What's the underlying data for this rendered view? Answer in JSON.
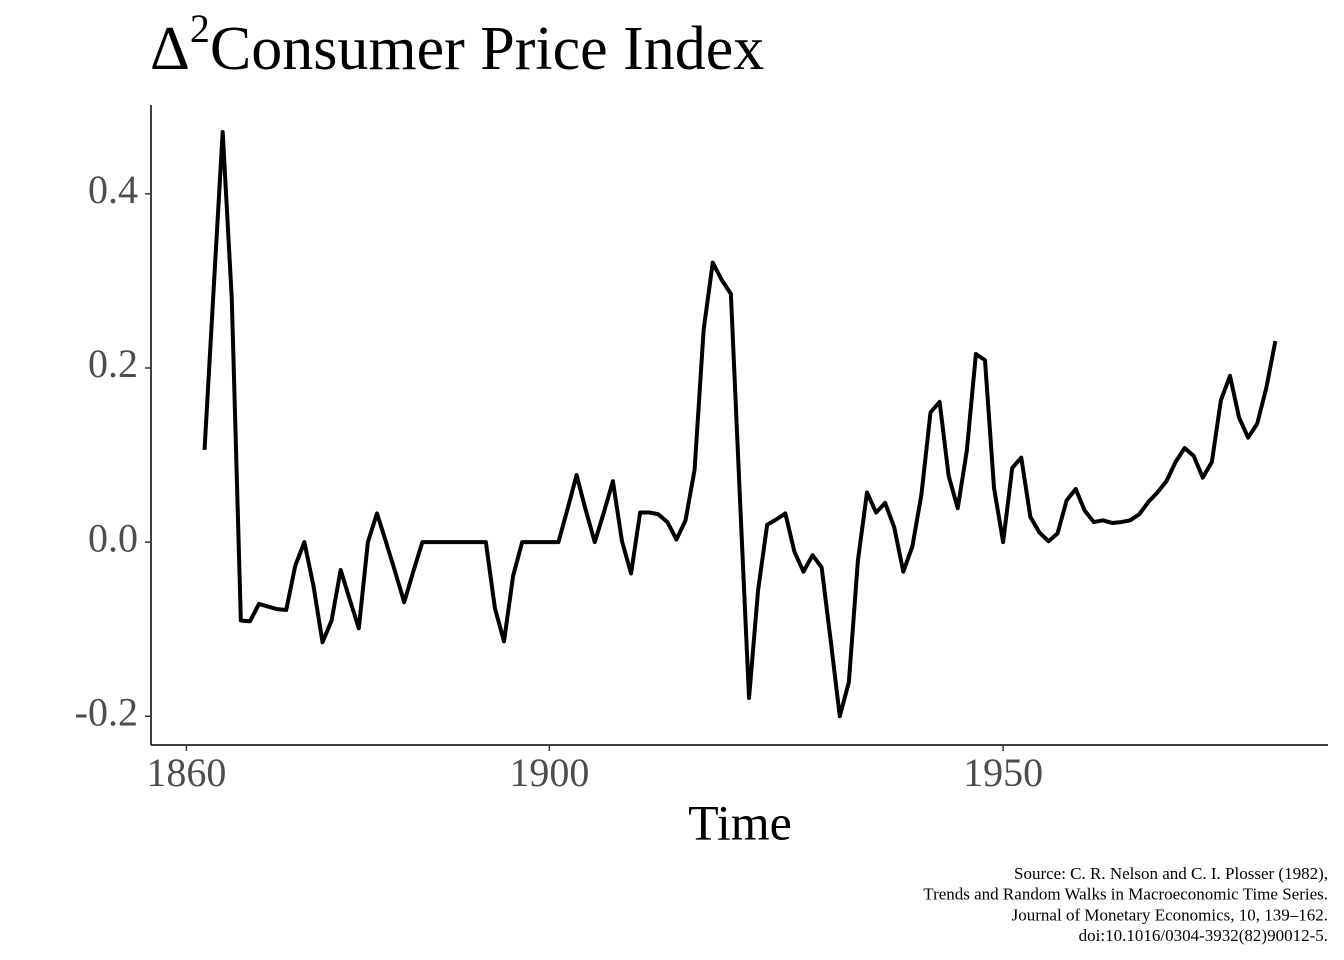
{
  "chart_data": {
    "type": "line",
    "title_prefix": "Δ",
    "title_superscript": "2",
    "title": "Consumer Price Index",
    "x_label": "Time",
    "caption": [
      "Source: C. R. Nelson and C. I. Plosser (1982),",
      "Trends and Random Walks in Macroeconomic Time Series.",
      "Journal of Monetary Economics, 10, 139–162.",
      "doi:10.1016/0304-3932(82)90012-5."
    ],
    "color": "#000000",
    "x": [
      1862,
      1863,
      1864,
      1865,
      1866,
      1867,
      1868,
      1869,
      1870,
      1871,
      1872,
      1873,
      1874,
      1875,
      1876,
      1877,
      1878,
      1879,
      1880,
      1881,
      1882,
      1883,
      1884,
      1885,
      1886,
      1887,
      1888,
      1889,
      1890,
      1891,
      1892,
      1893,
      1894,
      1895,
      1896,
      1897,
      1898,
      1899,
      1900,
      1901,
      1902,
      1903,
      1904,
      1905,
      1906,
      1907,
      1908,
      1909,
      1910,
      1911,
      1912,
      1913,
      1914,
      1915,
      1916,
      1917,
      1918,
      1919,
      1920,
      1921,
      1922,
      1923,
      1924,
      1925,
      1926,
      1927,
      1928,
      1929,
      1930,
      1931,
      1932,
      1933,
      1934,
      1935,
      1936,
      1937,
      1938,
      1939,
      1940,
      1941,
      1942,
      1943,
      1944,
      1945,
      1946,
      1947,
      1948,
      1949,
      1950,
      1951,
      1952,
      1953,
      1954,
      1955,
      1956,
      1957,
      1958,
      1959,
      1960,
      1961,
      1962,
      1963,
      1964,
      1965,
      1966,
      1967,
      1968,
      1969,
      1970,
      1971,
      1972,
      1973,
      1974,
      1975,
      1976,
      1977,
      1978,
      1979,
      1980
    ],
    "values": [
      0.106,
      0.29,
      0.471,
      0.28,
      -0.09,
      -0.091,
      -0.071,
      -0.074,
      -0.077,
      -0.078,
      -0.027,
      0.0,
      -0.05,
      -0.115,
      -0.09,
      -0.032,
      -0.066,
      -0.099,
      0.0,
      0.033,
      0.0,
      -0.034,
      -0.069,
      -0.034,
      0,
      0,
      0,
      0,
      0,
      0,
      0,
      0,
      -0.076,
      -0.114,
      -0.039,
      0,
      0,
      0,
      0,
      0,
      0.038,
      0.077,
      0.037,
      0,
      0.034,
      0.07,
      0.001,
      -0.036,
      0.034,
      0.034,
      0.032,
      0.023,
      0.003,
      0.025,
      0.083,
      0.244,
      0.321,
      0.301,
      0.285,
      0.05,
      -0.179,
      -0.055,
      0.02,
      0.026,
      0.033,
      -0.011,
      -0.034,
      -0.015,
      -0.029,
      -0.113,
      -0.2,
      -0.161,
      -0.021,
      0.057,
      0.034,
      0.045,
      0.017,
      -0.034,
      -0.005,
      0.055,
      0.149,
      0.161,
      0.076,
      0.039,
      0.105,
      0.216,
      0.209,
      0.062,
      0,
      0.085,
      0.097,
      0.029,
      0.011,
      0.001,
      0.01,
      0.048,
      0.061,
      0.036,
      0.023,
      0.025,
      0.022,
      0.023,
      0.025,
      0.032,
      0.046,
      0.057,
      0.07,
      0.092,
      0.108,
      0.099,
      0.074,
      0.092,
      0.163,
      0.191,
      0.143,
      0.12,
      0.136,
      0.177,
      0.231
    ],
    "xlim": [
      1856.1,
      1985.8
    ],
    "xticks": [
      1860,
      1900,
      1950
    ],
    "ylim": [
      -0.233,
      0.502
    ],
    "yticks": [
      -0.2,
      {
        "value": 0,
        "label": "0.0"
      },
      0.2,
      0.4
    ],
    "grid": false
  }
}
